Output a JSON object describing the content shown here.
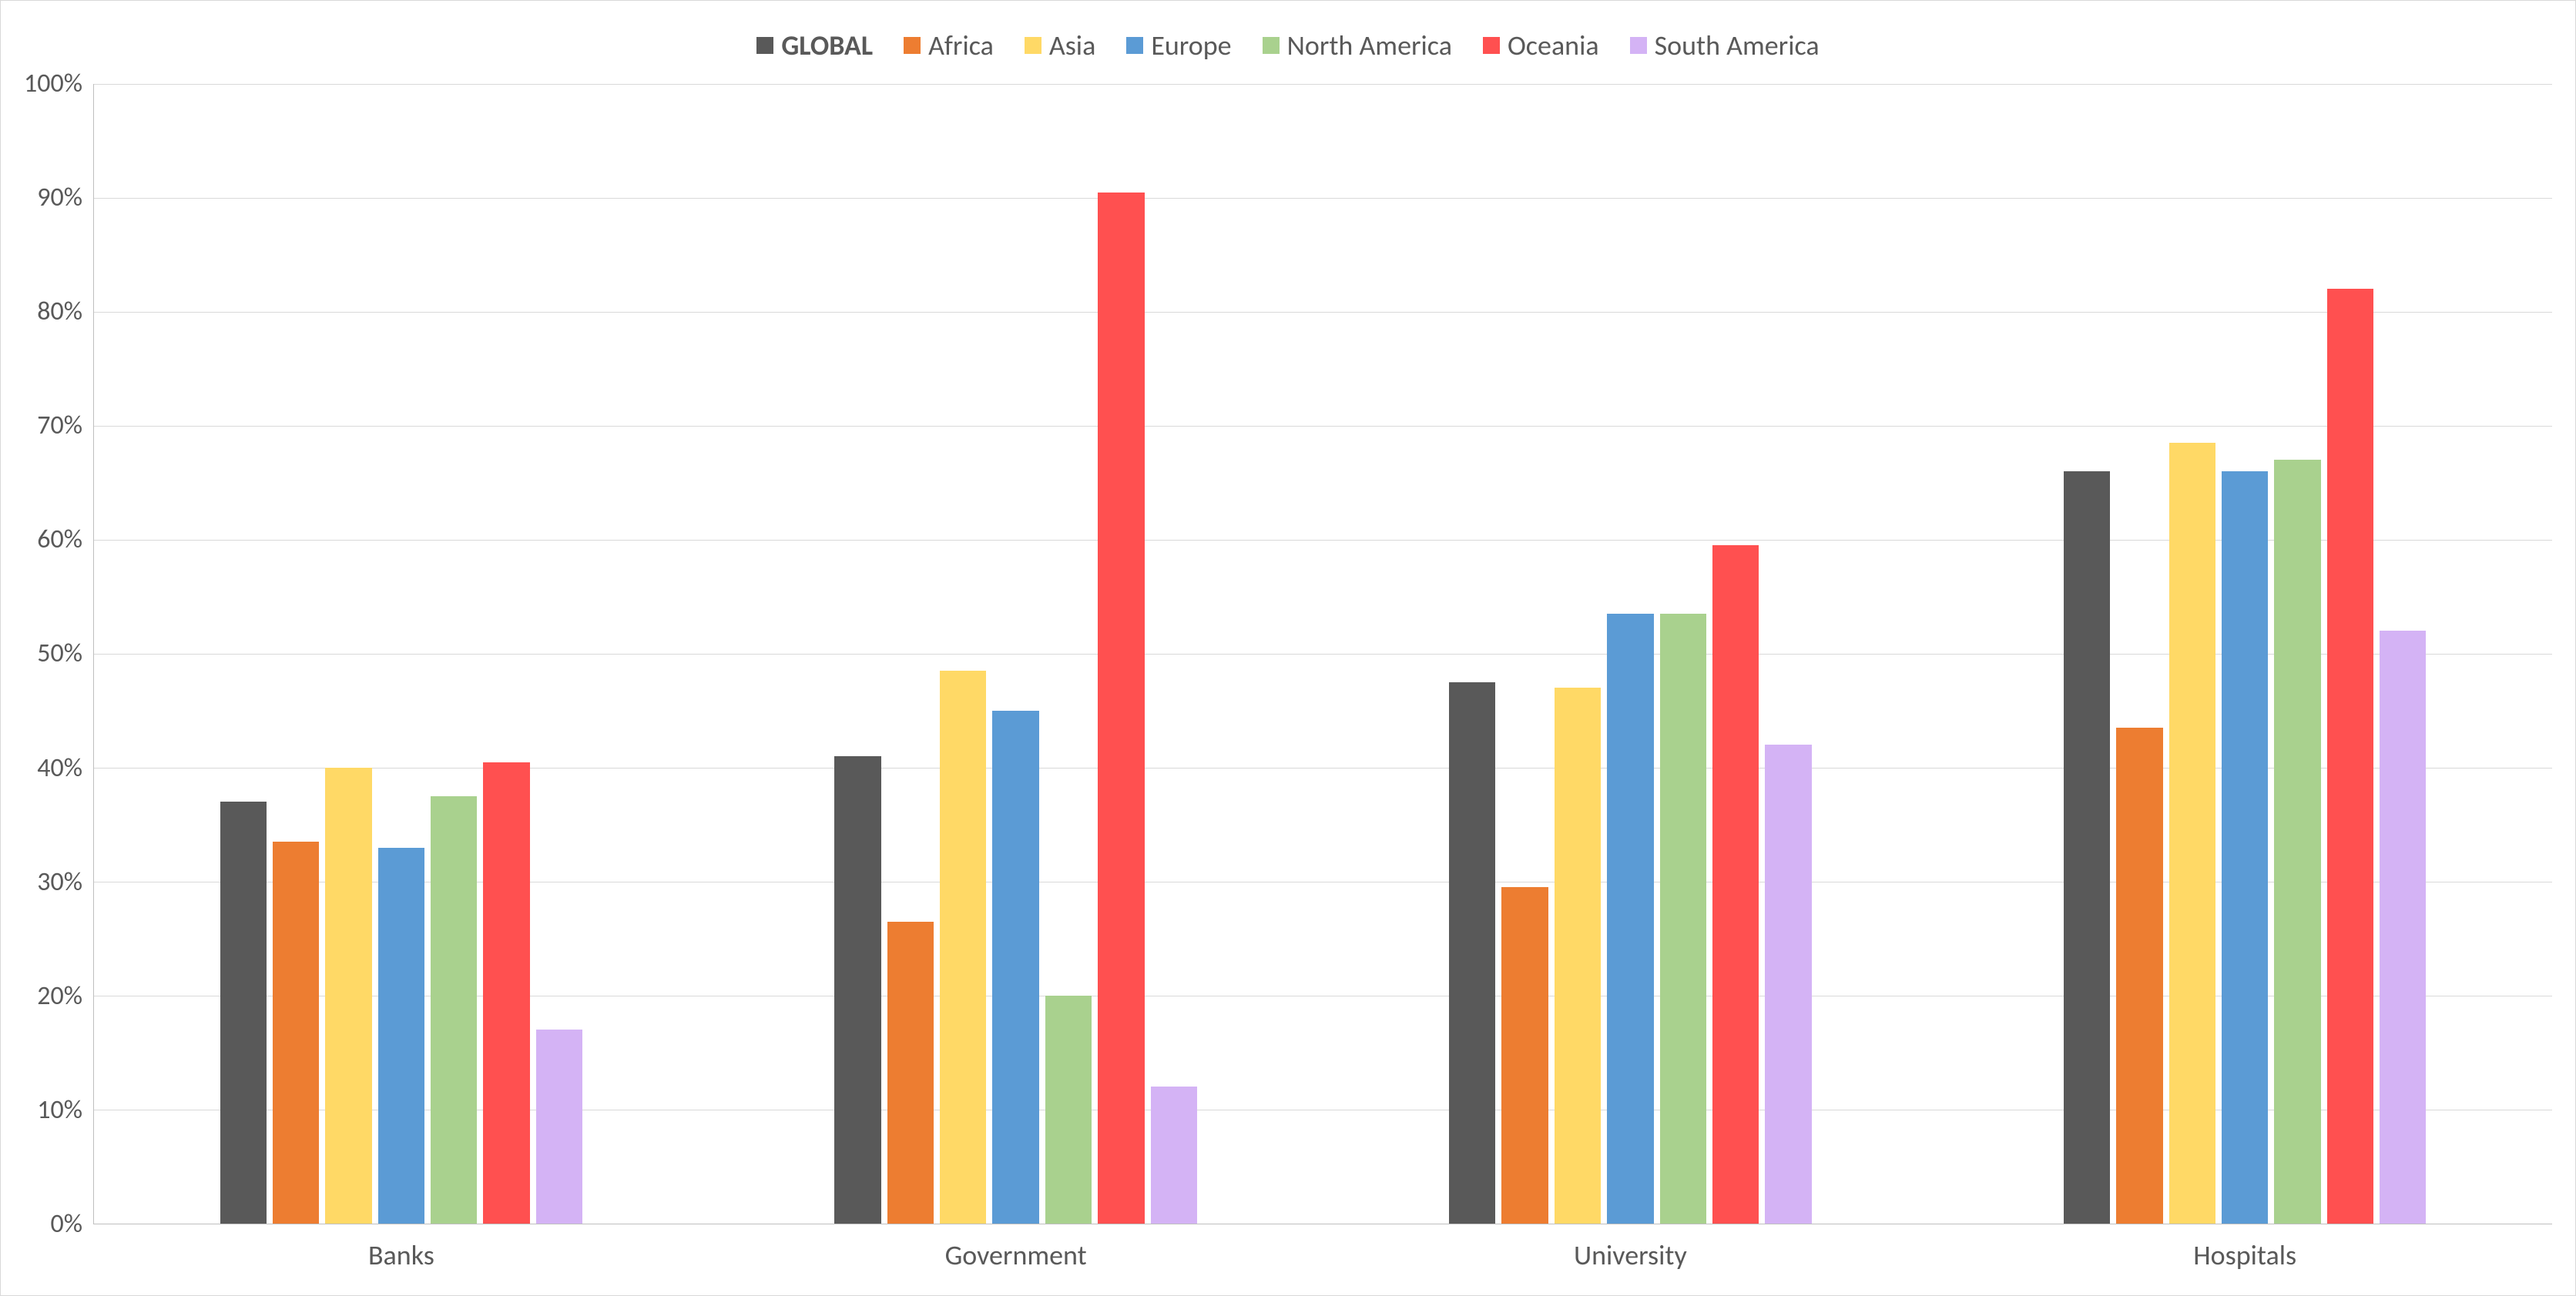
{
  "chart": {
    "type": "bar",
    "background_color": "#ffffff",
    "border_color": "#d9d9d9",
    "grid_color": "#d9d9d9",
    "axis_color": "#bfbfbf",
    "label_color": "#595959",
    "legend_fontsize": 36,
    "tick_fontsize": 34,
    "category_fontsize": 36,
    "ylim": [
      0,
      100
    ],
    "ytick_step": 10,
    "y_suffix": "%",
    "categories": [
      "Banks",
      "Government",
      "University",
      "Hospitals"
    ],
    "series": [
      {
        "name": "GLOBAL",
        "color": "#595959",
        "bold": true,
        "values": [
          37,
          41,
          47.5,
          66
        ]
      },
      {
        "name": "Africa",
        "color": "#ed7d31",
        "bold": false,
        "values": [
          33.5,
          26.5,
          29.5,
          43.5
        ]
      },
      {
        "name": "Asia",
        "color": "#ffd966",
        "bold": false,
        "values": [
          40,
          48.5,
          47,
          68.5
        ]
      },
      {
        "name": "Europe",
        "color": "#5b9bd5",
        "bold": false,
        "values": [
          33,
          45,
          53.5,
          66
        ]
      },
      {
        "name": "North America",
        "color": "#a9d18e",
        "bold": false,
        "values": [
          37.5,
          20,
          53.5,
          67
        ]
      },
      {
        "name": "Oceania",
        "color": "#ff5050",
        "bold": false,
        "values": [
          40.5,
          90.5,
          59.5,
          82
        ]
      },
      {
        "name": "South America",
        "color": "#d4b3f5",
        "bold": false,
        "values": [
          17,
          12,
          42,
          52
        ]
      }
    ]
  }
}
